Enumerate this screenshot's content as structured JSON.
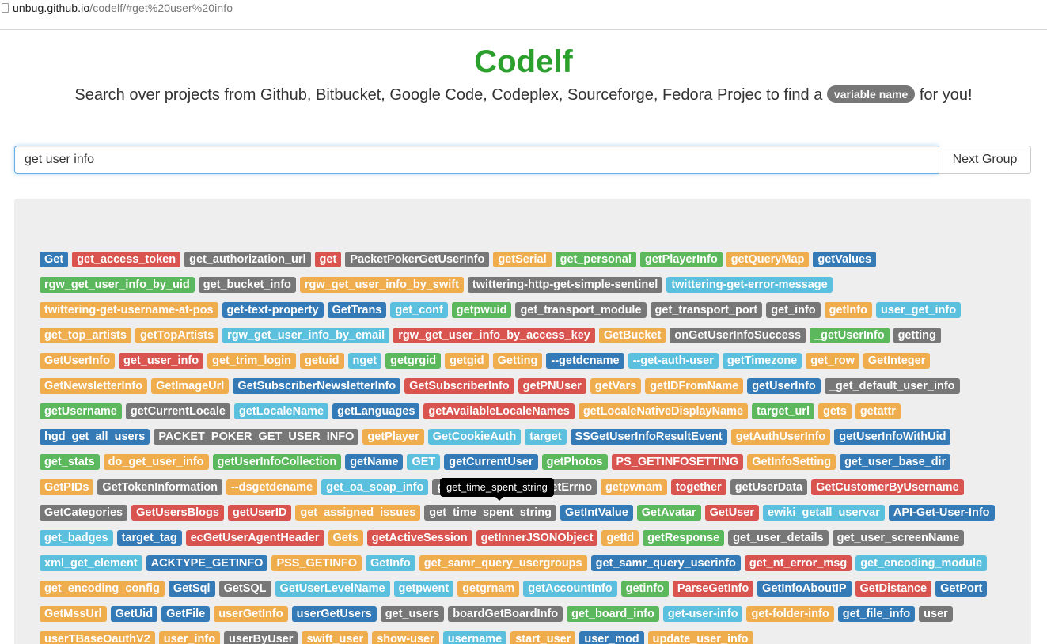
{
  "browser": {
    "url_host": "unbug.github.io",
    "url_path": "/codelf/#get%20user%20info"
  },
  "header": {
    "brand": "Codelf",
    "tagline_prefix": "Search over projects from Github, Bitbucket, Google Code, Codeplex, Sourceforge, Fedora Projec to find a",
    "tagline_badge": "variable name",
    "tagline_suffix": "for you!"
  },
  "search": {
    "value": "get user info",
    "next_label": "Next Group"
  },
  "tooltip": {
    "text": "get_time_spent_string"
  },
  "colors": {
    "primary": "#337ab7",
    "danger": "#d9534f",
    "default": "#777777",
    "warning": "#f0ad4e",
    "success": "#5cb85c",
    "info": "#5bc0de",
    "brand": "#2ca02c"
  },
  "tags": [
    {
      "text": "Get",
      "c": "primary"
    },
    {
      "text": "get_access_token",
      "c": "danger"
    },
    {
      "text": "get_authorization_url",
      "c": "default"
    },
    {
      "text": "get",
      "c": "danger"
    },
    {
      "text": "PacketPokerGetUserInfo",
      "c": "default"
    },
    {
      "text": "getSerial",
      "c": "warning"
    },
    {
      "text": "get_personal",
      "c": "success"
    },
    {
      "text": "getPlayerInfo",
      "c": "success"
    },
    {
      "text": "getQueryMap",
      "c": "warning"
    },
    {
      "text": "getValues",
      "c": "primary"
    },
    {
      "text": "rgw_get_user_info_by_uid",
      "c": "success"
    },
    {
      "text": "get_bucket_info",
      "c": "default"
    },
    {
      "text": "rgw_get_user_info_by_swift",
      "c": "warning"
    },
    {
      "text": "twittering-http-get-simple-sentinel",
      "c": "default"
    },
    {
      "text": "twittering-get-error-message",
      "c": "info"
    },
    {
      "text": "twittering-get-username-at-pos",
      "c": "warning"
    },
    {
      "text": "get-text-property",
      "c": "primary"
    },
    {
      "text": "GetTrans",
      "c": "primary"
    },
    {
      "text": "get_conf",
      "c": "info"
    },
    {
      "text": "getpwuid",
      "c": "success"
    },
    {
      "text": "get_transport_module",
      "c": "default"
    },
    {
      "text": "get_transport_port",
      "c": "default"
    },
    {
      "text": "get_info",
      "c": "default"
    },
    {
      "text": "getInfo",
      "c": "warning"
    },
    {
      "text": "user_get_info",
      "c": "info"
    },
    {
      "text": "get_top_artists",
      "c": "warning"
    },
    {
      "text": "getTopArtists",
      "c": "warning"
    },
    {
      "text": "rgw_get_user_info_by_email",
      "c": "info"
    },
    {
      "text": "rgw_get_user_info_by_access_key",
      "c": "danger"
    },
    {
      "text": "GetBucket",
      "c": "warning"
    },
    {
      "text": "onGetUserInfoSuccess",
      "c": "default"
    },
    {
      "text": "_getUserInfo",
      "c": "success"
    },
    {
      "text": "getting",
      "c": "default"
    },
    {
      "text": "GetUserInfo",
      "c": "warning"
    },
    {
      "text": "get_user_info",
      "c": "danger"
    },
    {
      "text": "get_trim_login",
      "c": "warning"
    },
    {
      "text": "getuid",
      "c": "warning"
    },
    {
      "text": "nget",
      "c": "info"
    },
    {
      "text": "getgrgid",
      "c": "success"
    },
    {
      "text": "getgid",
      "c": "warning"
    },
    {
      "text": "Getting",
      "c": "warning"
    },
    {
      "text": "--getdcname",
      "c": "primary"
    },
    {
      "text": "--get-auth-user",
      "c": "info"
    },
    {
      "text": "getTimezone",
      "c": "info"
    },
    {
      "text": "get_row",
      "c": "warning"
    },
    {
      "text": "GetInteger",
      "c": "warning"
    },
    {
      "text": "GetNewsletterInfo",
      "c": "warning"
    },
    {
      "text": "GetImageUrl",
      "c": "warning"
    },
    {
      "text": "GetSubscriberNewsletterInfo",
      "c": "primary"
    },
    {
      "text": "GetSubscriberInfo",
      "c": "danger"
    },
    {
      "text": "getPNUser",
      "c": "danger"
    },
    {
      "text": "getVars",
      "c": "warning"
    },
    {
      "text": "getIDFromName",
      "c": "warning"
    },
    {
      "text": "getUserInfo",
      "c": "primary"
    },
    {
      "text": "_get_default_user_info",
      "c": "default"
    },
    {
      "text": "getUsername",
      "c": "success"
    },
    {
      "text": "getCurrentLocale",
      "c": "default"
    },
    {
      "text": "getLocaleName",
      "c": "info"
    },
    {
      "text": "getLanguages",
      "c": "primary"
    },
    {
      "text": "getAvailableLocaleNames",
      "c": "danger"
    },
    {
      "text": "getLocaleNativeDisplayName",
      "c": "warning"
    },
    {
      "text": "target_url",
      "c": "success"
    },
    {
      "text": "gets",
      "c": "warning"
    },
    {
      "text": "getattr",
      "c": "warning"
    },
    {
      "text": "hgd_get_all_users",
      "c": "primary"
    },
    {
      "text": "PACKET_POKER_GET_USER_INFO",
      "c": "default"
    },
    {
      "text": "getPlayer",
      "c": "warning"
    },
    {
      "text": "GetCookieAuth",
      "c": "info"
    },
    {
      "text": "target",
      "c": "info"
    },
    {
      "text": "SSGetUserInfoResultEvent",
      "c": "primary"
    },
    {
      "text": "getAuthUserInfo",
      "c": "warning"
    },
    {
      "text": "getUserInfoWithUid",
      "c": "primary"
    },
    {
      "text": "get_stats",
      "c": "success"
    },
    {
      "text": "do_get_user_info",
      "c": "warning"
    },
    {
      "text": "getUserInfoCollection",
      "c": "success"
    },
    {
      "text": "getName",
      "c": "primary"
    },
    {
      "text": "GET",
      "c": "info"
    },
    {
      "text": "getCurrentUser",
      "c": "primary"
    },
    {
      "text": "getPhotos",
      "c": "success"
    },
    {
      "text": "PS_GETINFOSETTING",
      "c": "danger"
    },
    {
      "text": "GetInfoSetting",
      "c": "warning"
    },
    {
      "text": "get_user_base_dir",
      "c": "primary"
    },
    {
      "text": "GetPIDs",
      "c": "warning"
    },
    {
      "text": "GetTokenInformation",
      "c": "default"
    },
    {
      "text": "--dsgetdcname",
      "c": "warning"
    },
    {
      "text": "get_oa_soap_info",
      "c": "info"
    },
    {
      "text": "getTimeSpentStr",
      "c": "default"
    },
    {
      "text": "GetErrno",
      "c": "default"
    },
    {
      "text": "getpwnam",
      "c": "warning"
    },
    {
      "text": "together",
      "c": "danger"
    },
    {
      "text": "getUserData",
      "c": "default"
    },
    {
      "text": "GetCustomerByUsername",
      "c": "danger"
    },
    {
      "text": "GetCategories",
      "c": "default"
    },
    {
      "text": "GetUsersBlogs",
      "c": "danger"
    },
    {
      "text": "getUserID",
      "c": "danger"
    },
    {
      "text": "get_assigned_issues",
      "c": "warning"
    },
    {
      "text": "get_time_spent_string",
      "c": "default"
    },
    {
      "text": "GetIntValue",
      "c": "primary"
    },
    {
      "text": "GetAvatar",
      "c": "success"
    },
    {
      "text": "GetUser",
      "c": "danger"
    },
    {
      "text": "ewiki_getall_uservar",
      "c": "info"
    },
    {
      "text": "API-Get-User-Info",
      "c": "primary"
    },
    {
      "text": "get_badges",
      "c": "info"
    },
    {
      "text": "target_tag",
      "c": "primary"
    },
    {
      "text": "ecGetUserAgentHeader",
      "c": "danger"
    },
    {
      "text": "Gets",
      "c": "warning"
    },
    {
      "text": "getActiveSession",
      "c": "danger"
    },
    {
      "text": "getInnerJSONObject",
      "c": "danger"
    },
    {
      "text": "getId",
      "c": "warning"
    },
    {
      "text": "getResponse",
      "c": "success"
    },
    {
      "text": "get_user_details",
      "c": "default"
    },
    {
      "text": "get_user_screenName",
      "c": "default"
    },
    {
      "text": "xml_get_element",
      "c": "info"
    },
    {
      "text": "ACKTYPE_GETINFO",
      "c": "primary"
    },
    {
      "text": "PSS_GETINFO",
      "c": "warning"
    },
    {
      "text": "GetInfo",
      "c": "info"
    },
    {
      "text": "get_samr_query_usergroups",
      "c": "warning"
    },
    {
      "text": "get_samr_query_userinfo",
      "c": "primary"
    },
    {
      "text": "get_nt_error_msg",
      "c": "danger"
    },
    {
      "text": "get_encoding_module",
      "c": "info"
    },
    {
      "text": "get_encoding_config",
      "c": "warning"
    },
    {
      "text": "GetSql",
      "c": "primary"
    },
    {
      "text": "GetSQL",
      "c": "default"
    },
    {
      "text": "GetUserLevelName",
      "c": "info"
    },
    {
      "text": "getpwent",
      "c": "info"
    },
    {
      "text": "getgrnam",
      "c": "warning"
    },
    {
      "text": "getAccountInfo",
      "c": "info"
    },
    {
      "text": "getinfo",
      "c": "success"
    },
    {
      "text": "ParseGetInfo",
      "c": "danger"
    },
    {
      "text": "GetInfoAboutIP",
      "c": "primary"
    },
    {
      "text": "GetDistance",
      "c": "danger"
    },
    {
      "text": "GetPort",
      "c": "primary"
    },
    {
      "text": "GetMssUrl",
      "c": "warning"
    },
    {
      "text": "GetUid",
      "c": "primary"
    },
    {
      "text": "GetFile",
      "c": "primary"
    },
    {
      "text": "userGetInfo",
      "c": "warning"
    },
    {
      "text": "userGetUsers",
      "c": "primary"
    },
    {
      "text": "get_users",
      "c": "default"
    },
    {
      "text": "boardGetBoardInfo",
      "c": "default"
    },
    {
      "text": "get_board_info",
      "c": "success"
    },
    {
      "text": "get-user-info",
      "c": "info"
    },
    {
      "text": "get-folder-info",
      "c": "warning"
    },
    {
      "text": "get_file_info",
      "c": "primary"
    },
    {
      "text": "user",
      "c": "default"
    },
    {
      "text": "userTBaseOauthV2",
      "c": "warning"
    },
    {
      "text": "user_info",
      "c": "warning"
    },
    {
      "text": "userByUser",
      "c": "default"
    },
    {
      "text": "swift_user",
      "c": "warning"
    },
    {
      "text": "show-user",
      "c": "warning"
    },
    {
      "text": "username",
      "c": "info"
    },
    {
      "text": "start_user",
      "c": "warning"
    },
    {
      "text": "user_mod",
      "c": "primary"
    },
    {
      "text": "update_user_info",
      "c": "warning"
    }
  ]
}
